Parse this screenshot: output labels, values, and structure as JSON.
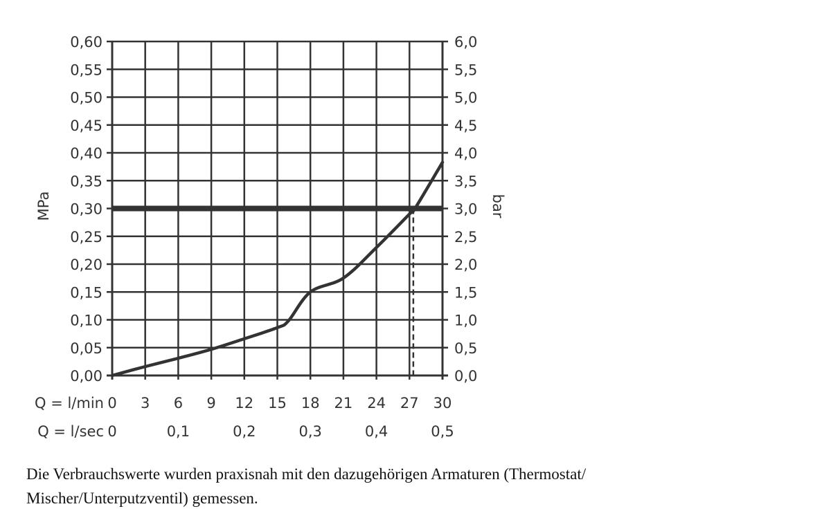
{
  "chart_data": {
    "type": "line",
    "ylabel_left": "MPa",
    "ylabel_right": "bar",
    "xlabel_rows": [
      "Q = l/min",
      "Q = l/sec"
    ],
    "xlim": [
      0,
      30
    ],
    "ylim": [
      0,
      0.6
    ],
    "grid": true,
    "x_ticks_lmin": [
      "0",
      "3",
      "6",
      "9",
      "12",
      "15",
      "18",
      "21",
      "24",
      "27",
      "30"
    ],
    "x_ticks_lsec": [
      {
        "x": 0,
        "label": "0"
      },
      {
        "x": 6,
        "label": "0,1"
      },
      {
        "x": 12,
        "label": "0,2"
      },
      {
        "x": 18,
        "label": "0,3"
      },
      {
        "x": 24,
        "label": "0,4"
      },
      {
        "x": 30,
        "label": "0,5"
      }
    ],
    "y_ticks_left": [
      "0,00",
      "0,05",
      "0,10",
      "0,15",
      "0,20",
      "0,25",
      "0,30",
      "0,35",
      "0,40",
      "0,45",
      "0,50",
      "0,55",
      "0,60"
    ],
    "y_ticks_right": [
      "0,0",
      "0,5",
      "1,0",
      "1,5",
      "2,0",
      "2,5",
      "3,0",
      "3,5",
      "4,0",
      "4,5",
      "5,0",
      "5,5",
      "6,0"
    ],
    "series": [
      {
        "x": [
          0,
          3,
          6,
          9,
          12,
          15,
          16,
          18,
          21,
          24,
          27,
          27.5,
          30
        ],
        "y": [
          0,
          0.016,
          0.031,
          0.047,
          0.066,
          0.086,
          0.098,
          0.15,
          0.175,
          0.23,
          0.29,
          0.3,
          0.383
        ]
      }
    ],
    "reference_line_y": 0.3,
    "marker_x": 27.35,
    "colors": {
      "line": "#333333"
    }
  },
  "caption": {
    "line1": "Die Verbrauchswerte wurden praxisnah mit den dazugehörigen Armaturen (Thermostat/",
    "line2": "Mischer/Unterputzventil) gemessen."
  }
}
